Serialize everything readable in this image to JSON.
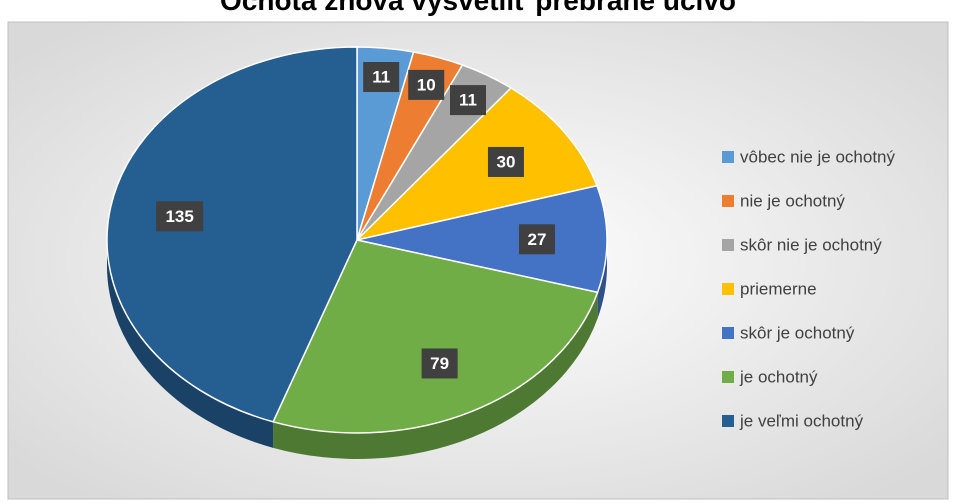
{
  "chart_data": {
    "type": "pie",
    "title": "Ochota znova vysvetliť prebrané učivo",
    "categories": [
      "vôbec nie je ochotný",
      "nie je ochotný",
      "skôr nie je ochotný",
      "priemerne",
      "skôr je ochotný",
      "je ochotný",
      "je veľmi ochotný"
    ],
    "values": [
      11,
      10,
      11,
      30,
      27,
      79,
      135
    ],
    "colors": [
      "#5b9bd5",
      "#ed7d31",
      "#a5a5a5",
      "#ffc000",
      "#4472c4",
      "#70ad47",
      "#255e91"
    ],
    "legend": "right"
  }
}
